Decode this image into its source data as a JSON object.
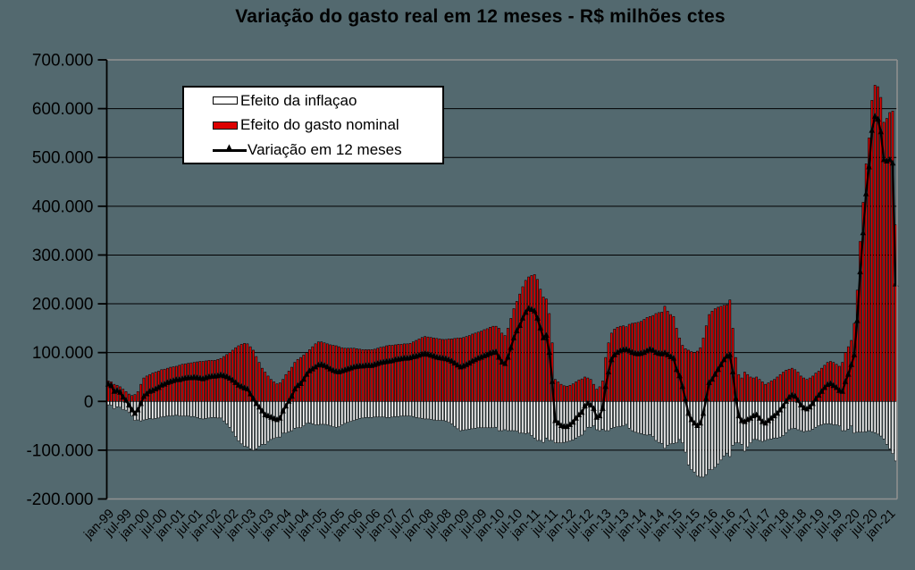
{
  "colors": {
    "background": "#53696F",
    "plot_border": "#919191",
    "grid": "#000000",
    "axis": "#000000",
    "bar_inflation_fill": "#FFFFFF",
    "bar_nominal_fill": "#DD0000",
    "line": "#000000",
    "legend_bg": "#FFFFFF",
    "text": "#000000"
  },
  "chart_data": {
    "type": "bar",
    "subtype": "combo-stacked-bar-line",
    "title": "Variação do gasto real em 12 meses - R$ milhões ctes",
    "unit": "R$ milhões",
    "x_start": "jan-1999",
    "x_freq": "monthly",
    "x_tick_step_months": 6,
    "ylim": [
      -200000,
      700000
    ],
    "y_gridline_step": 100000,
    "grid": true,
    "legend_position": "top-left-inside",
    "y_tick_labels": [
      "700.000",
      "600.000",
      "500.000",
      "400.000",
      "300.000",
      "200.000",
      "100.000",
      "0",
      "-100.000",
      "-200.000"
    ],
    "x_tick_labels": [
      "jan-99",
      "jul-99",
      "jan-00",
      "jul-00",
      "jan-01",
      "jul-01",
      "jan-02",
      "jul-02",
      "jan-03",
      "jul-03",
      "jan-04",
      "jul-04",
      "jan-05",
      "jul-05",
      "jan-06",
      "jul-06",
      "jan-07",
      "jul-07",
      "jan-08",
      "jul-08",
      "jan-09",
      "jul-09",
      "jan-10",
      "jul-10",
      "jan-11",
      "jul-11",
      "jan-12",
      "jul-12",
      "jan-13",
      "jul-13",
      "jan-14",
      "jul-14",
      "jan-15",
      "jul-15",
      "jan-16",
      "jul-16",
      "jan-17",
      "jul-17",
      "jan-18",
      "jul-18",
      "jan-19",
      "jul-19",
      "jan-20",
      "jul-20",
      "jan-21"
    ],
    "legend": [
      {
        "label": "Efeito da inflaçao",
        "marker": "bar",
        "color": "#FFFFFF"
      },
      {
        "label": "Efeito do gasto nominal",
        "marker": "bar",
        "color": "#DD0000"
      },
      {
        "label": "Variação em 12 meses",
        "marker": "line-triangle",
        "color": "#000000"
      }
    ],
    "series": [
      {
        "name": "Efeito da inflaçao",
        "type": "bar",
        "color": "#FFFFFF",
        "values": [
          -7000,
          -8000,
          -15000,
          -11000,
          -12000,
          -17000,
          -18000,
          -23000,
          -30000,
          -39000,
          -38000,
          -40000,
          -38000,
          -37000,
          -35000,
          -36000,
          -35000,
          -34000,
          -32000,
          -31000,
          -30000,
          -30000,
          -29000,
          -28000,
          -30000,
          -30000,
          -30000,
          -30000,
          -31000,
          -31000,
          -33000,
          -35000,
          -36000,
          -35000,
          -34000,
          -33000,
          -33000,
          -34000,
          -34000,
          -40000,
          -46000,
          -53000,
          -62000,
          -72000,
          -81000,
          -87000,
          -92000,
          -93000,
          -97000,
          -100000,
          -97000,
          -92000,
          -88000,
          -88000,
          -82000,
          -78000,
          -76000,
          -74000,
          -73000,
          -65000,
          -65000,
          -62000,
          -60000,
          -55000,
          -54000,
          -54000,
          -50000,
          -45000,
          -44000,
          -46000,
          -48000,
          -48000,
          -47000,
          -47000,
          -48000,
          -50000,
          -52000,
          -53000,
          -52000,
          -48000,
          -45000,
          -43000,
          -41000,
          -39000,
          -37000,
          -35000,
          -34000,
          -33000,
          -33000,
          -33000,
          -32000,
          -32000,
          -32000,
          -32000,
          -33000,
          -33000,
          -32000,
          -31000,
          -31000,
          -30000,
          -30000,
          -30000,
          -30000,
          -31000,
          -33000,
          -34000,
          -35000,
          -36000,
          -36000,
          -37000,
          -38000,
          -39000,
          -39000,
          -39000,
          -40000,
          -43000,
          -46000,
          -51000,
          -56000,
          -60000,
          -59000,
          -58000,
          -57000,
          -56000,
          -55000,
          -54000,
          -54000,
          -54000,
          -54000,
          -54000,
          -54000,
          -53000,
          -60000,
          -60000,
          -58000,
          -60000,
          -60000,
          -60000,
          -61000,
          -65000,
          -65000,
          -66000,
          -65000,
          -70000,
          -75000,
          -80000,
          -80000,
          -84000,
          -75000,
          -80000,
          -80000,
          -85000,
          -85000,
          -85000,
          -84000,
          -83000,
          -81000,
          -79000,
          -75000,
          -72000,
          -69000,
          -60000,
          -53000,
          -53000,
          -50000,
          -58000,
          -60000,
          -57000,
          -60000,
          -60000,
          -55000,
          -53000,
          -52000,
          -51000,
          -50000,
          -47000,
          -55000,
          -60000,
          -63000,
          -65000,
          -66000,
          -68000,
          -69000,
          -68000,
          -72000,
          -80000,
          -84000,
          -86000,
          -96000,
          -90000,
          -87000,
          -86000,
          -85000,
          -78000,
          -85000,
          -104000,
          -130000,
          -140000,
          -145000,
          -153000,
          -155000,
          -155000,
          -150000,
          -140000,
          -140000,
          -135000,
          -128000,
          -120000,
          -112000,
          -106000,
          -113000,
          -90000,
          -85000,
          -85000,
          -88000,
          -102000,
          -93000,
          -85000,
          -78000,
          -78000,
          -80000,
          -82000,
          -80000,
          -78000,
          -77000,
          -75000,
          -75000,
          -73000,
          -70000,
          -64000,
          -58000,
          -56000,
          -55000,
          -58000,
          -60000,
          -62000,
          -61000,
          -60000,
          -57000,
          -53000,
          -50000,
          -48000,
          -46000,
          -46000,
          -46000,
          -48000,
          -48000,
          -50000,
          -60000,
          -60000,
          -57000,
          -50000,
          -65000,
          -63000,
          -63000,
          -63000,
          -62000,
          -60000,
          -62000,
          -64000,
          -67000,
          -71000,
          -77000,
          -88000,
          -97000,
          -107000,
          -122000
        ]
      },
      {
        "name": "Efeito do gasto nominal",
        "type": "bar",
        "color": "#DD0000",
        "values": [
          42000,
          40000,
          35000,
          33000,
          30000,
          25000,
          20000,
          15000,
          12000,
          14000,
          20000,
          35000,
          48000,
          52000,
          55000,
          58000,
          60000,
          62000,
          65000,
          66000,
          68000,
          70000,
          71000,
          72000,
          74000,
          76000,
          77000,
          78000,
          79000,
          80000,
          81000,
          82000,
          82000,
          83000,
          84000,
          84000,
          84000,
          86000,
          88000,
          92000,
          96000,
          100000,
          105000,
          110000,
          114000,
          117000,
          119000,
          118000,
          112000,
          105000,
          92000,
          80000,
          68000,
          60000,
          52000,
          45000,
          40000,
          36000,
          38000,
          45000,
          55000,
          62000,
          70000,
          80000,
          86000,
          90000,
          95000,
          100000,
          106000,
          112000,
          118000,
          122000,
          122000,
          120000,
          118000,
          116000,
          115000,
          114000,
          112000,
          110000,
          109000,
          109000,
          109000,
          109000,
          108000,
          107000,
          106000,
          106000,
          106000,
          106000,
          107000,
          109000,
          111000,
          112000,
          114000,
          115000,
          115000,
          116000,
          117000,
          117000,
          118000,
          118000,
          119000,
          122000,
          125000,
          128000,
          131000,
          133000,
          132000,
          131000,
          130000,
          129000,
          128000,
          127000,
          127000,
          128000,
          128000,
          129000,
          130000,
          130000,
          131000,
          133000,
          135000,
          138000,
          140000,
          142000,
          144000,
          147000,
          149000,
          152000,
          154000,
          154000,
          150000,
          140000,
          135000,
          150000,
          170000,
          190000,
          205000,
          220000,
          235000,
          248000,
          255000,
          258000,
          260000,
          250000,
          230000,
          214000,
          210000,
          180000,
          120000,
          45000,
          40000,
          35000,
          32000,
          31000,
          33000,
          36000,
          40000,
          44000,
          46000,
          50000,
          48000,
          45000,
          35000,
          25000,
          30000,
          42000,
          90000,
          120000,
          140000,
          148000,
          152000,
          154000,
          155000,
          153000,
          158000,
          160000,
          161000,
          162000,
          164000,
          168000,
          172000,
          174000,
          176000,
          180000,
          182000,
          183000,
          195000,
          185000,
          178000,
          174000,
          150000,
          130000,
          115000,
          108000,
          105000,
          102000,
          100000,
          103000,
          110000,
          130000,
          155000,
          178000,
          185000,
          190000,
          193000,
          195000,
          197000,
          198000,
          208000,
          150000,
          90000,
          55000,
          48000,
          60000,
          55000,
          50000,
          48000,
          50000,
          45000,
          40000,
          35000,
          38000,
          42000,
          45000,
          50000,
          55000,
          60000,
          64000,
          66000,
          68000,
          65000,
          60000,
          52000,
          48000,
          45000,
          48000,
          52000,
          58000,
          62000,
          68000,
          74000,
          80000,
          82000,
          80000,
          76000,
          72000,
          80000,
          100000,
          112000,
          125000,
          160000,
          228000,
          328000,
          408000,
          487000,
          540000,
          617000,
          648000,
          645000,
          623000,
          572000,
          580000,
          592000,
          595000,
          362000
        ]
      },
      {
        "name": "Variação em 12 meses",
        "type": "line",
        "color": "#000000",
        "values": [
          35000,
          32000,
          20000,
          22000,
          18000,
          8000,
          2000,
          -8000,
          -18000,
          -25000,
          -18000,
          -5000,
          10000,
          15000,
          20000,
          22000,
          25000,
          28000,
          33000,
          35000,
          38000,
          40000,
          42000,
          44000,
          44000,
          46000,
          47000,
          48000,
          48000,
          49000,
          48000,
          47000,
          46000,
          48000,
          50000,
          51000,
          51000,
          52000,
          54000,
          52000,
          50000,
          47000,
          43000,
          38000,
          33000,
          30000,
          27000,
          25000,
          15000,
          5000,
          -5000,
          -12000,
          -20000,
          -28000,
          -30000,
          -33000,
          -36000,
          -38000,
          -35000,
          -20000,
          -10000,
          0,
          10000,
          25000,
          32000,
          36000,
          45000,
          55000,
          62000,
          66000,
          70000,
          74000,
          75000,
          73000,
          70000,
          66000,
          63000,
          61000,
          60000,
          62000,
          64000,
          66000,
          68000,
          70000,
          71000,
          72000,
          72000,
          73000,
          73000,
          73000,
          75000,
          77000,
          79000,
          80000,
          81000,
          82000,
          83000,
          85000,
          86000,
          87000,
          88000,
          88000,
          89000,
          91000,
          92000,
          94000,
          96000,
          97000,
          96000,
          94000,
          92000,
          90000,
          89000,
          88000,
          87000,
          85000,
          82000,
          78000,
          74000,
          70000,
          72000,
          75000,
          78000,
          82000,
          85000,
          88000,
          90000,
          93000,
          95000,
          98000,
          100000,
          101000,
          90000,
          80000,
          77000,
          90000,
          110000,
          130000,
          144000,
          155000,
          170000,
          182000,
          190000,
          188000,
          185000,
          170000,
          150000,
          130000,
          135000,
          100000,
          40000,
          -40000,
          -45000,
          -50000,
          -52000,
          -52000,
          -48000,
          -43000,
          -35000,
          -28000,
          -23000,
          -10000,
          -5000,
          -8000,
          -15000,
          -33000,
          -30000,
          -15000,
          30000,
          60000,
          85000,
          95000,
          100000,
          103000,
          105000,
          106000,
          103000,
          100000,
          98000,
          97000,
          98000,
          100000,
          103000,
          106000,
          104000,
          100000,
          98000,
          97000,
          99000,
          95000,
          91000,
          88000,
          65000,
          52000,
          30000,
          4000,
          -25000,
          -38000,
          -45000,
          -50000,
          -45000,
          -25000,
          5000,
          38000,
          45000,
          55000,
          65000,
          75000,
          85000,
          92000,
          95000,
          60000,
          5000,
          -30000,
          -40000,
          -42000,
          -38000,
          -35000,
          -30000,
          -28000,
          -35000,
          -42000,
          -45000,
          -40000,
          -35000,
          -30000,
          -25000,
          -18000,
          -10000,
          0,
          8000,
          12000,
          10000,
          2000,
          -8000,
          -14000,
          -16000,
          -12000,
          -5000,
          5000,
          12000,
          20000,
          28000,
          34000,
          36000,
          32000,
          28000,
          22000,
          20000,
          40000,
          55000,
          75000,
          95000,
          165000,
          265000,
          345000,
          425000,
          480000,
          555000,
          584000,
          578000,
          552000,
          495000,
          492000,
          495000,
          488000,
          240000
        ]
      }
    ]
  }
}
